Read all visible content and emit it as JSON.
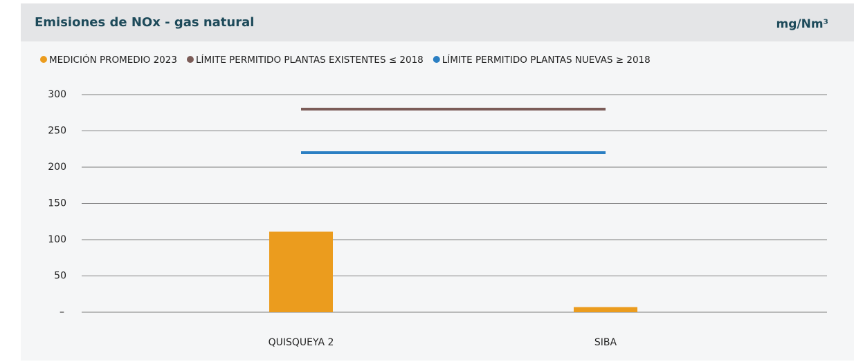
{
  "chart_data": {
    "type": "bar",
    "title": "Emisiones de NOx - gas natural",
    "unit_label": "mg/Nm³",
    "categories": [
      "QUISQUEYA 2",
      "SIBA"
    ],
    "series": [
      {
        "name": "MEDICIÓN PROMEDIO 2023",
        "type": "bar",
        "color": "#eb9c1e",
        "values": [
          111,
          7
        ]
      },
      {
        "name": "LÍMITE PERMITIDO PLANTAS EXISTENTES ≤ 2018",
        "type": "line",
        "color": "#7b5c58",
        "values": [
          280,
          280
        ]
      },
      {
        "name": "LÍMITE PERMITIDO PLANTAS NUEVAS ≥ 2018",
        "type": "line",
        "color": "#2b7fc3",
        "values": [
          220,
          220
        ]
      }
    ],
    "ylim": [
      0,
      300
    ],
    "yticks": [
      {
        "value": 0,
        "label": "–"
      },
      50,
      100,
      150,
      200,
      250,
      300
    ],
    "grid": true,
    "legend": "top"
  }
}
